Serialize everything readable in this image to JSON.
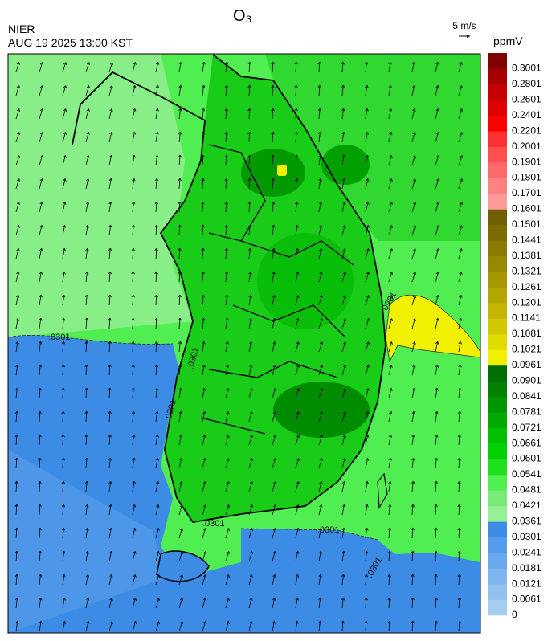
{
  "header": {
    "title": "O₃",
    "agency": "NIER",
    "timestamp": "AUG 19 2025 13:00 KST",
    "wind_scale": "5 m/s",
    "unit": "ppmV"
  },
  "colorbar": {
    "levels": [
      0,
      0.0061,
      0.0121,
      0.0181,
      0.0241,
      0.0301,
      0.0361,
      0.0421,
      0.0481,
      0.0541,
      0.0601,
      0.0661,
      0.0721,
      0.0781,
      0.0841,
      0.0901,
      0.0961,
      0.1021,
      0.1081,
      0.1141,
      0.1201,
      0.1261,
      0.1321,
      0.1381,
      0.1441,
      0.1501,
      0.1601,
      0.1701,
      0.1801,
      0.1901,
      0.2001,
      0.2201,
      0.2401,
      0.2601,
      0.2801,
      0.3001
    ],
    "colors": [
      "#a6cdee",
      "#92c1ee",
      "#7fb5ee",
      "#6aa9ee",
      "#559cee",
      "#3c8ce6",
      "#96f096",
      "#78ea78",
      "#50f050",
      "#1ee01e",
      "#00d200",
      "#00c000",
      "#00aa00",
      "#009600",
      "#008200",
      "#006e00",
      "#f0f000",
      "#e0dc00",
      "#d2c800",
      "#c4b600",
      "#b4a600",
      "#a69600",
      "#988800",
      "#8a7a00",
      "#7c6c00",
      "#6e6000",
      "#ff9a9a",
      "#ff8282",
      "#ff6a6a",
      "#ff5050",
      "#ff3030",
      "#ff0000",
      "#e00000",
      "#c40000",
      "#a80000",
      "#800000"
    ]
  },
  "contour_labels": [
    ".0301",
    ".0301",
    ".0301",
    ".0301",
    ".0301",
    ".0301",
    ".0961"
  ]
}
